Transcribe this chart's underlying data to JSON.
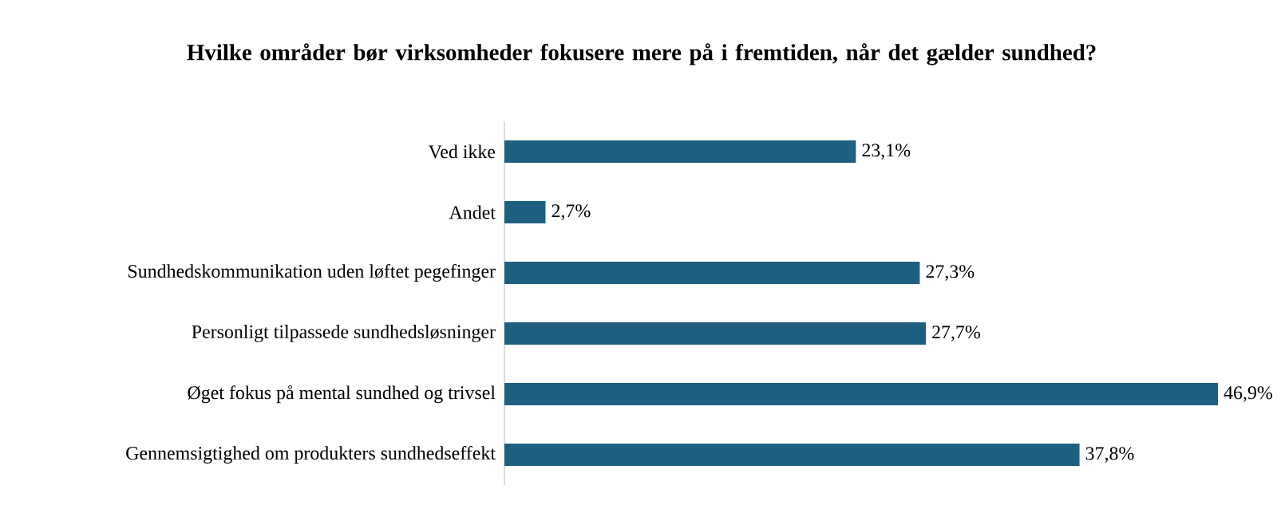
{
  "chart_data": {
    "type": "bar",
    "orientation": "horizontal",
    "title": "Hvilke områder bør virksomheder fokusere mere på i fremtiden, når det gælder sundhed?",
    "categories": [
      "Ved ikke",
      "Andet",
      "Sundhedskommunikation uden løftet pegefinger",
      "Personligt tilpassede sundhedsløsninger",
      "Øget fokus på mental sundhed og trivsel",
      "Gennemsigtighed om produkters sundhedseffekt"
    ],
    "values": [
      23.1,
      2.7,
      27.3,
      27.7,
      46.9,
      37.8
    ],
    "value_labels": [
      "23,1%",
      "2,7%",
      "27,3%",
      "27,7%",
      "46,9%",
      "37,8%"
    ],
    "color": "#1f5f7f"
  }
}
